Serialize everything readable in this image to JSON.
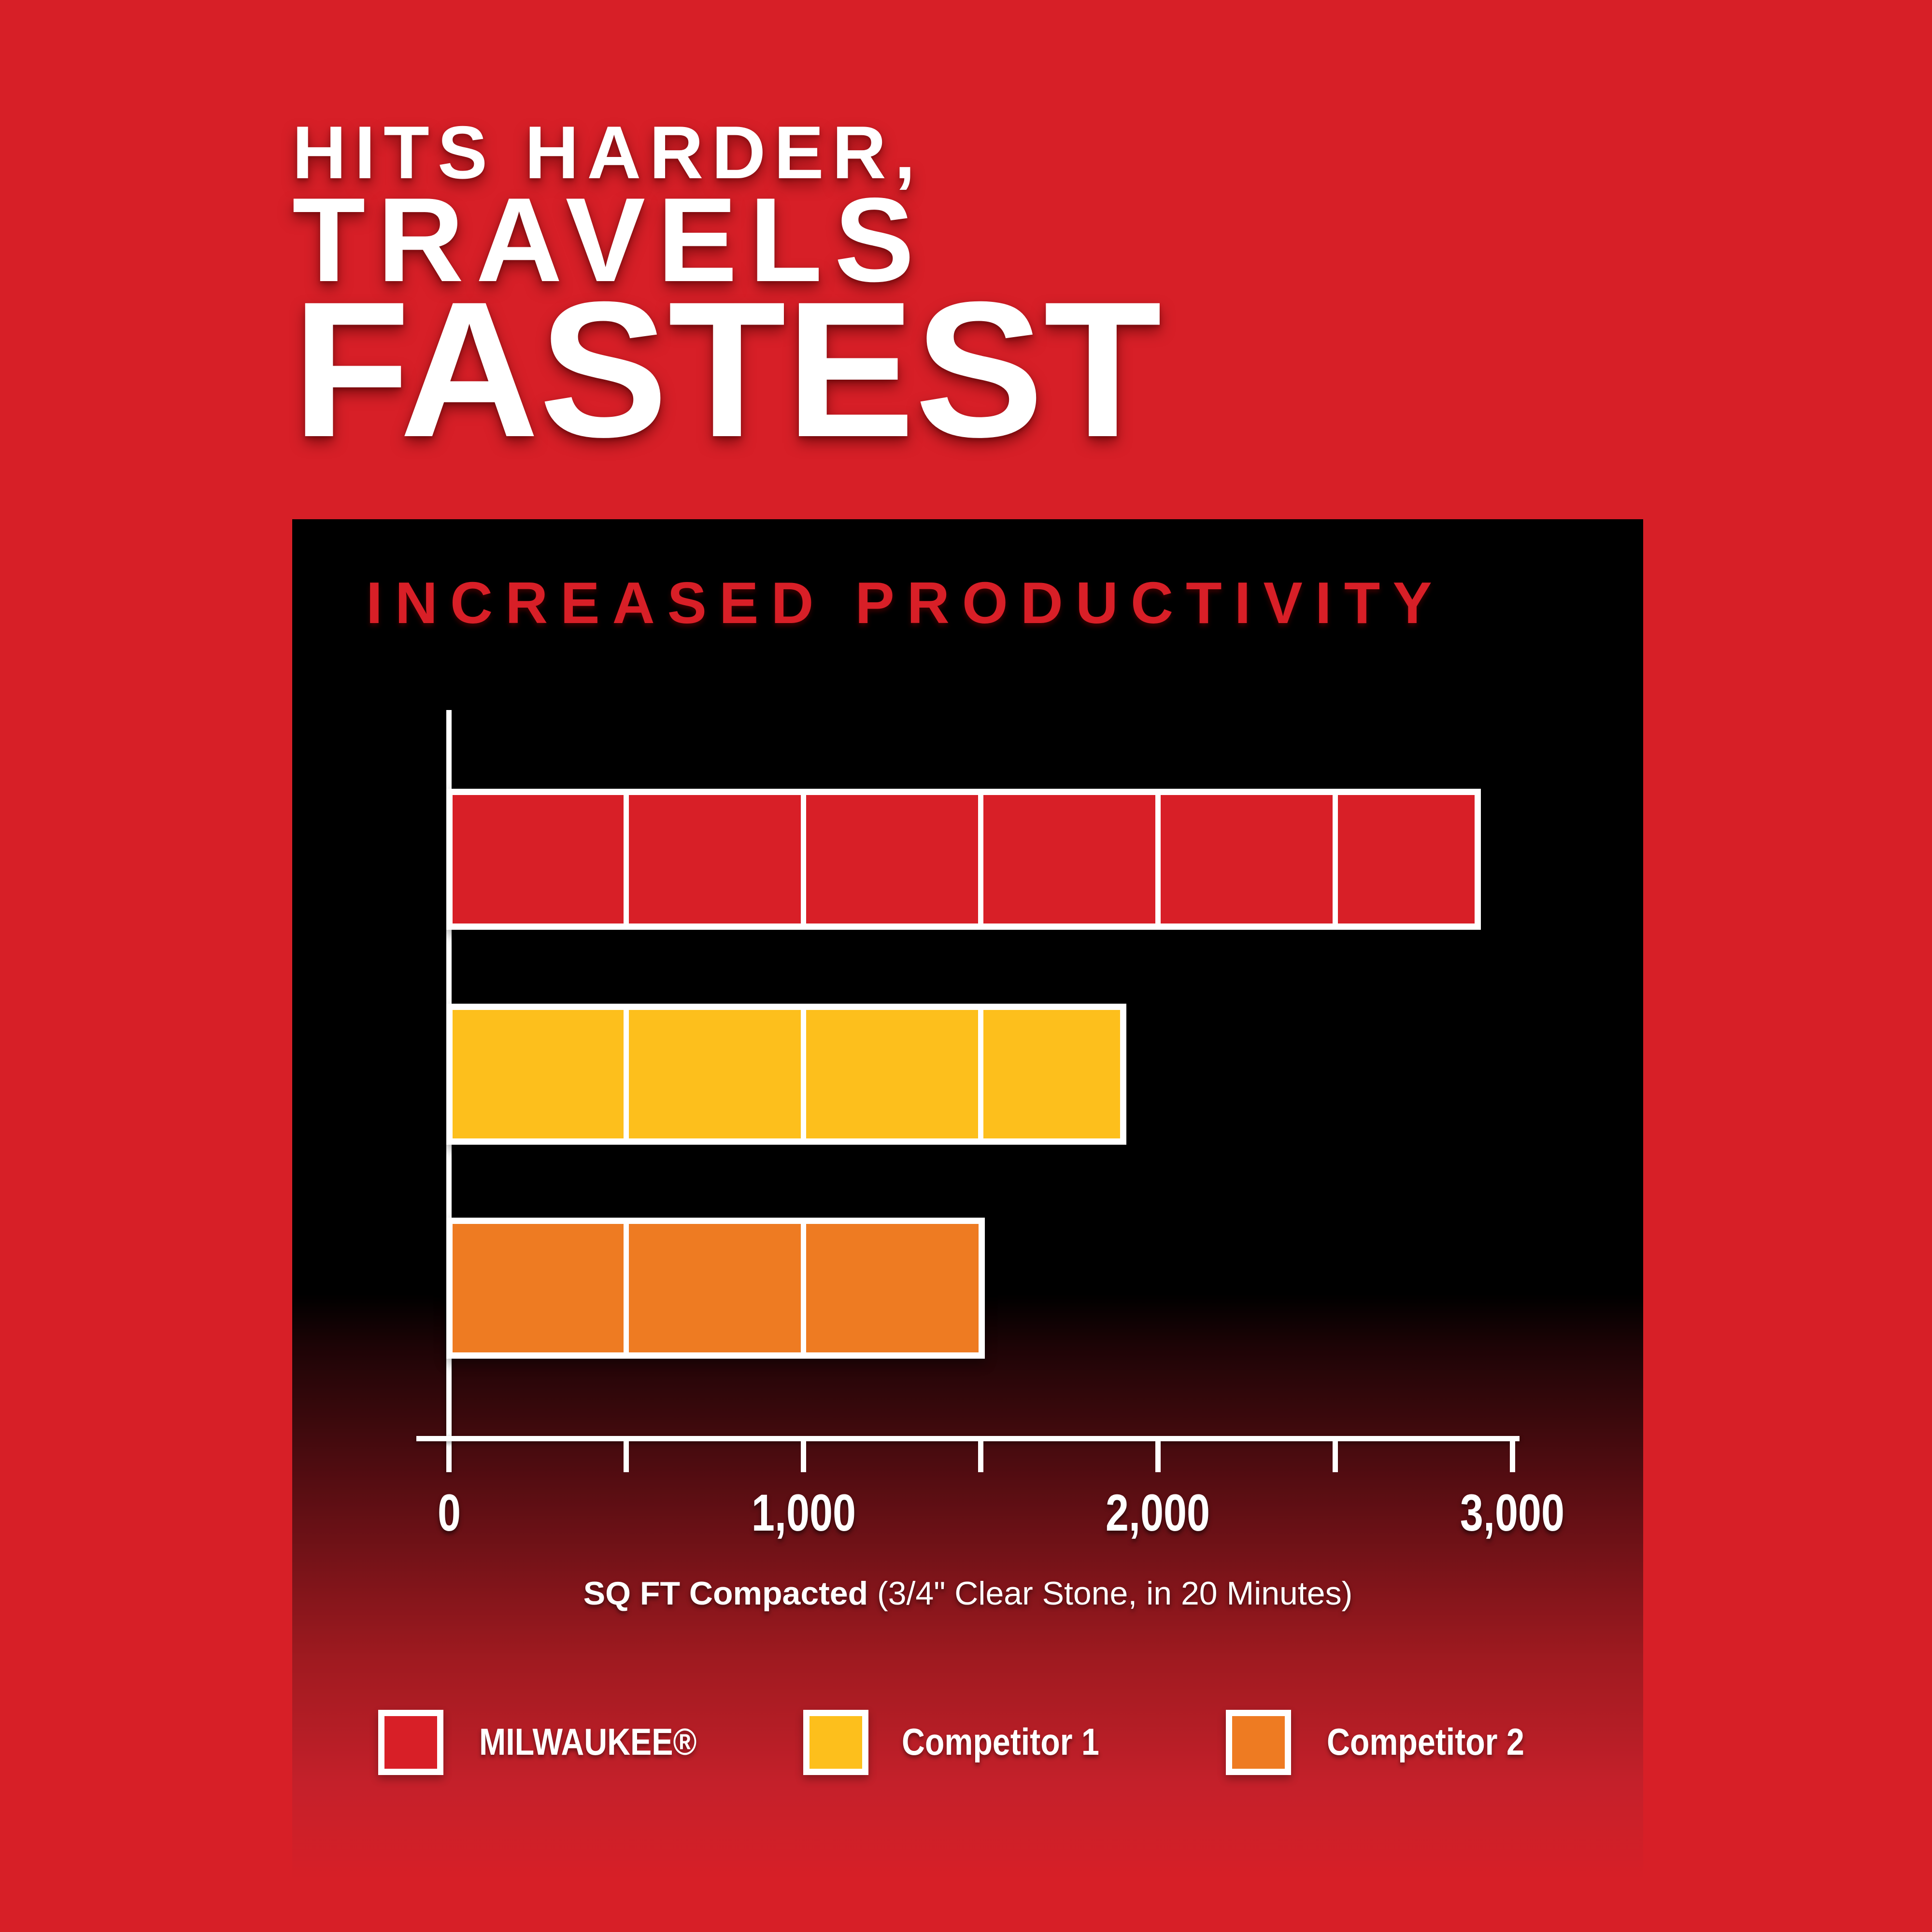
{
  "page": {
    "background_color": "#d71f27",
    "panel_top_color": "#000000"
  },
  "headline": {
    "lines": [
      "HITS HARDER,",
      "TRAVELS",
      "FASTEST"
    ],
    "color": "#ffffff"
  },
  "chart_data": {
    "type": "bar",
    "orientation": "horizontal",
    "title": "INCREASED PRODUCTIVITY",
    "title_color": "#d81f27",
    "categories": [
      "MILWAUKEE®",
      "Competitor 1",
      "Competitor 2"
    ],
    "values": [
      2900,
      1900,
      1500
    ],
    "bar_colors": [
      "#d81f27",
      "#fdbf1c",
      "#ee7b22"
    ],
    "segment_size": 500,
    "xlabel": "SQ FT Compacted (3/4\" Clear Stone, in 20 Minutes)",
    "xlim": [
      0,
      3000
    ],
    "x_ticks": [
      0,
      500,
      1000,
      1500,
      2000,
      2500,
      3000
    ],
    "x_tick_labeled_values": [
      0,
      1000,
      2000,
      3000
    ],
    "x_tick_labels": [
      "0",
      "1,000",
      "2,000",
      "3,000"
    ],
    "grid": false,
    "legend_position": "bottom",
    "axis_color": "#ffffff"
  },
  "x_label_parts": {
    "bold": "SQ FT Compacted",
    "rest": " (3/4\" Clear Stone, in 20 Minutes)"
  },
  "legend": {
    "items": [
      {
        "label": "MILWAUKEE®",
        "color": "#d81f27"
      },
      {
        "label": "Competitor 1",
        "color": "#fdbf1c"
      },
      {
        "label": "Competitor 2",
        "color": "#ee7b22"
      }
    ]
  }
}
